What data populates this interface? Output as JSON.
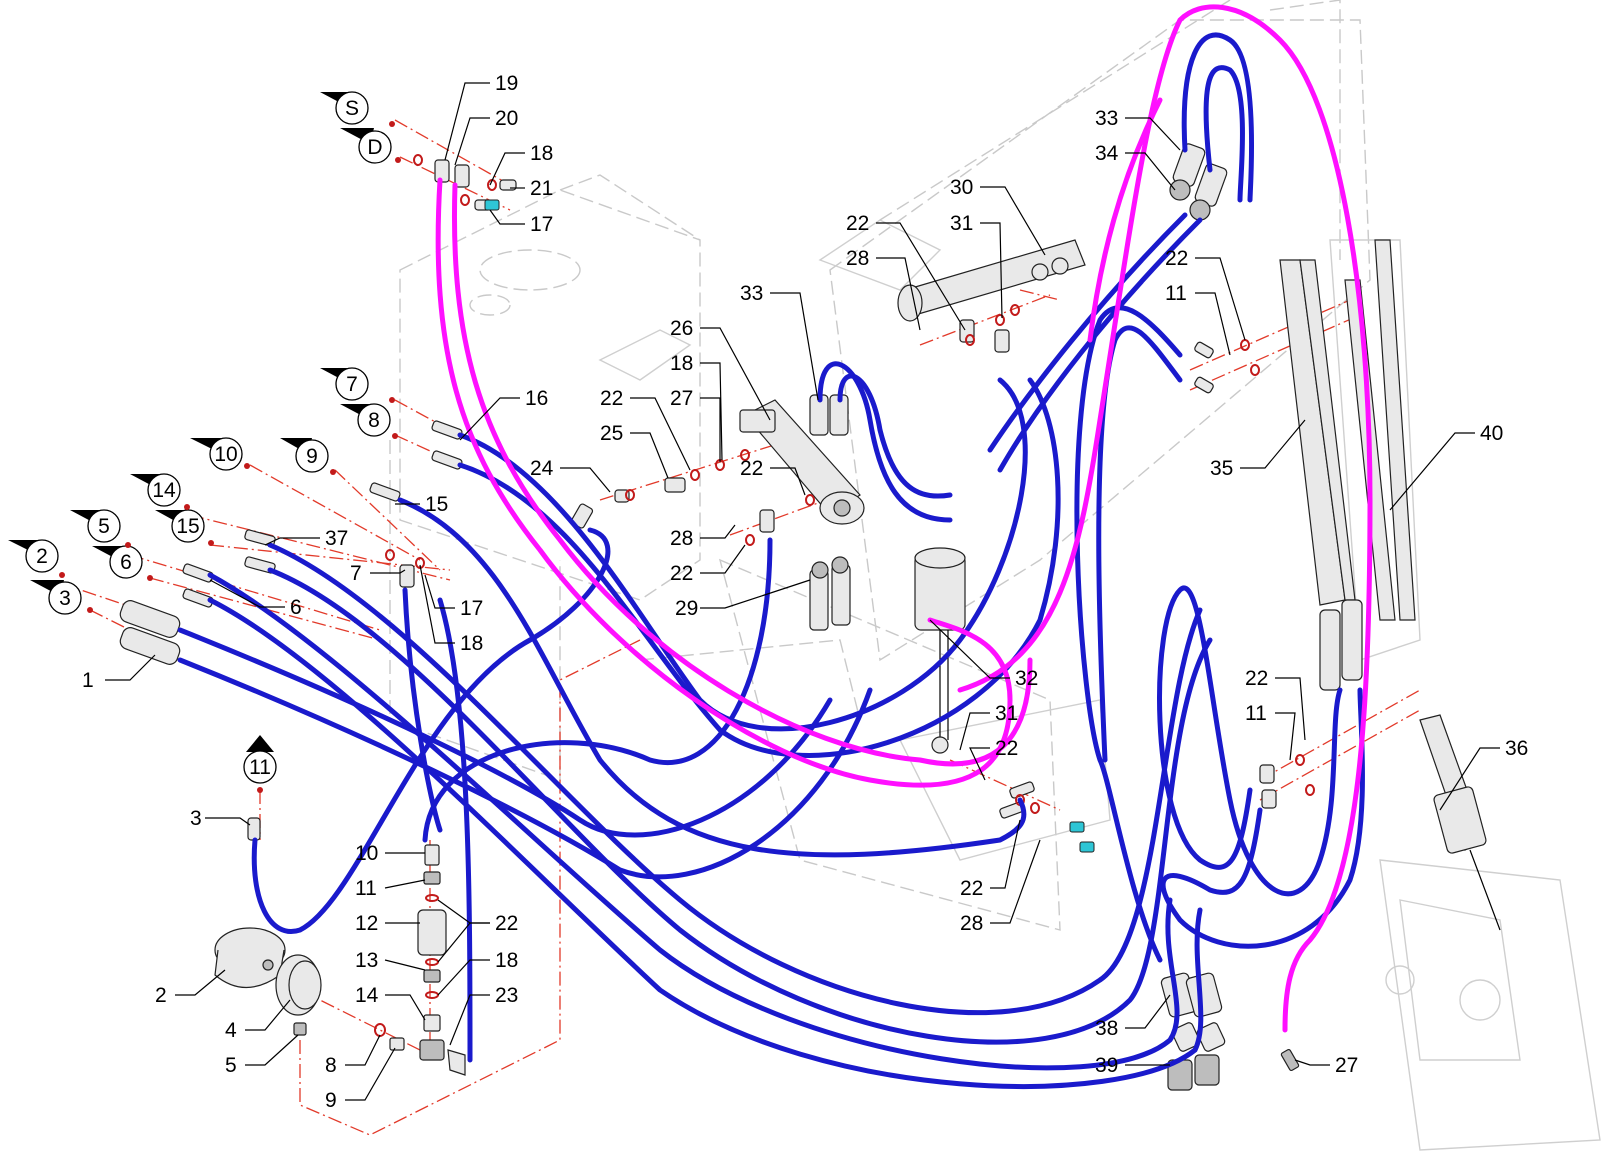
{
  "ref_markers": {
    "S": "S",
    "D": "D",
    "m7": "7",
    "m8": "8",
    "m10": "10",
    "m9": "9",
    "m14": "14",
    "m15": "15",
    "m5": "5",
    "m6": "6",
    "m2": "2",
    "m3": "3",
    "m11": "11"
  },
  "callouts": {
    "c1": "1",
    "c2": "2",
    "c3": "3",
    "c4": "4",
    "c5": "5",
    "c6": "6",
    "c7": "7",
    "c8": "8",
    "c9": "9",
    "c10": "10",
    "c11": "11",
    "c11b": "11",
    "c11c": "11",
    "c12": "12",
    "c13": "13",
    "c14": "14",
    "c15": "15",
    "c16": "16",
    "c17a": "17",
    "c17b": "17",
    "c18a": "18",
    "c18b": "18",
    "c18c": "18",
    "c18d": "18",
    "c19": "19",
    "c20": "20",
    "c21": "21",
    "c22a": "22",
    "c22b": "22",
    "c22c": "22",
    "c22d": "22",
    "c22e": "22",
    "c22f": "22",
    "c22g": "22",
    "c22h": "22",
    "c22i": "22",
    "c23": "23",
    "c24": "24",
    "c25": "25",
    "c26": "26",
    "c27a": "27",
    "c27b": "27",
    "c28a": "28",
    "c28b": "28",
    "c28c": "28",
    "c29": "29",
    "c30": "30",
    "c31a": "31",
    "c31b": "31",
    "c32": "32",
    "c33a": "33",
    "c33b": "33",
    "c34": "34",
    "c35": "35",
    "c36": "36",
    "c37": "37",
    "c38": "38",
    "c39": "39",
    "c40": "40"
  },
  "colors": {
    "hose_primary": "#1a1acc",
    "hose_highlight": "#ff10ff",
    "centerline": "#e23a2a",
    "ghost_outline": "#c9c9c9"
  }
}
